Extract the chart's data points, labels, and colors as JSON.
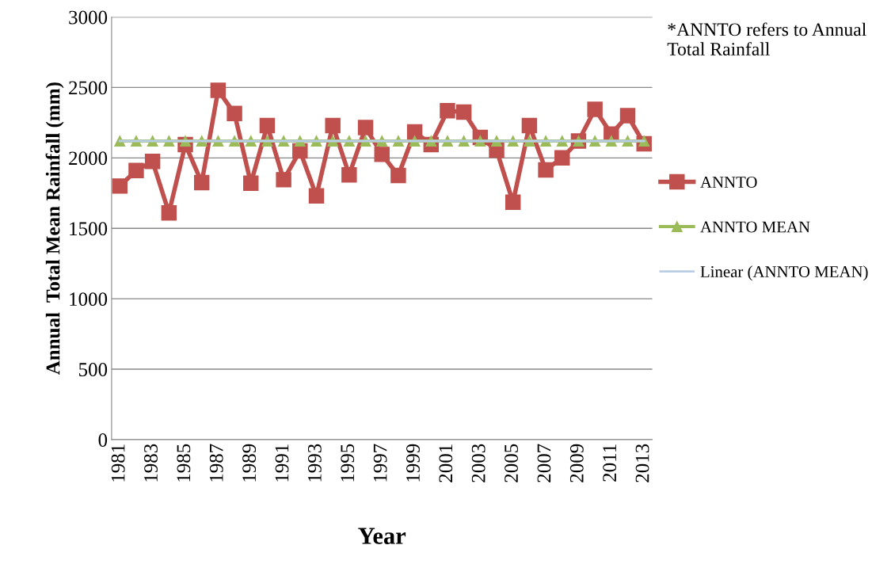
{
  "chart_data": {
    "type": "line",
    "xlabel": "Year",
    "ylabel": "Annual  Total Mean Rainfall (mm)",
    "categories": [
      "1981",
      null,
      "1983",
      null,
      "1985",
      null,
      "1987",
      null,
      "1989",
      null,
      "1991",
      null,
      "1993",
      null,
      "1995",
      null,
      "1997",
      null,
      "1999",
      null,
      "2001",
      null,
      "2003",
      null,
      "2005",
      null,
      "2007",
      null,
      "2009",
      null,
      "2011",
      null,
      "2013"
    ],
    "series": [
      {
        "name": "ANNTO",
        "color": "#c0504d",
        "marker": "square",
        "values": [
          1800,
          1910,
          1975,
          1610,
          2095,
          1825,
          2480,
          2315,
          1820,
          2230,
          1845,
          2050,
          1730,
          2230,
          1880,
          2215,
          2025,
          1875,
          2185,
          2095,
          2335,
          2325,
          2145,
          2055,
          1685,
          2230,
          1915,
          2000,
          2120,
          2345,
          2170,
          2300,
          2100
        ]
      },
      {
        "name": "ANNTO MEAN",
        "color": "#9bbb59",
        "marker": "triangle",
        "values": [
          2120,
          2120,
          2120,
          2120,
          2120,
          2120,
          2120,
          2120,
          2120,
          2120,
          2120,
          2120,
          2120,
          2120,
          2120,
          2120,
          2120,
          2120,
          2120,
          2120,
          2120,
          2120,
          2120,
          2120,
          2120,
          2120,
          2120,
          2120,
          2120,
          2120,
          2120,
          2120,
          2120
        ]
      },
      {
        "name": "Linear (ANNTO MEAN)",
        "color": "#b9cde5",
        "marker": "none",
        "values": [
          2120,
          2120,
          2120,
          2120,
          2120,
          2120,
          2120,
          2120,
          2120,
          2120,
          2120,
          2120,
          2120,
          2120,
          2120,
          2120,
          2120,
          2120,
          2120,
          2120,
          2120,
          2120,
          2120,
          2120,
          2120,
          2120,
          2120,
          2120,
          2120,
          2120,
          2120,
          2120,
          2120
        ]
      }
    ],
    "ylim": [
      0,
      3000
    ],
    "yticks": [
      0,
      500,
      1000,
      1500,
      2000,
      2500,
      3000
    ],
    "grid": "y",
    "legend": "right",
    "annotations": [
      "*ANNTO refers to Annual Total Rainfall"
    ]
  }
}
